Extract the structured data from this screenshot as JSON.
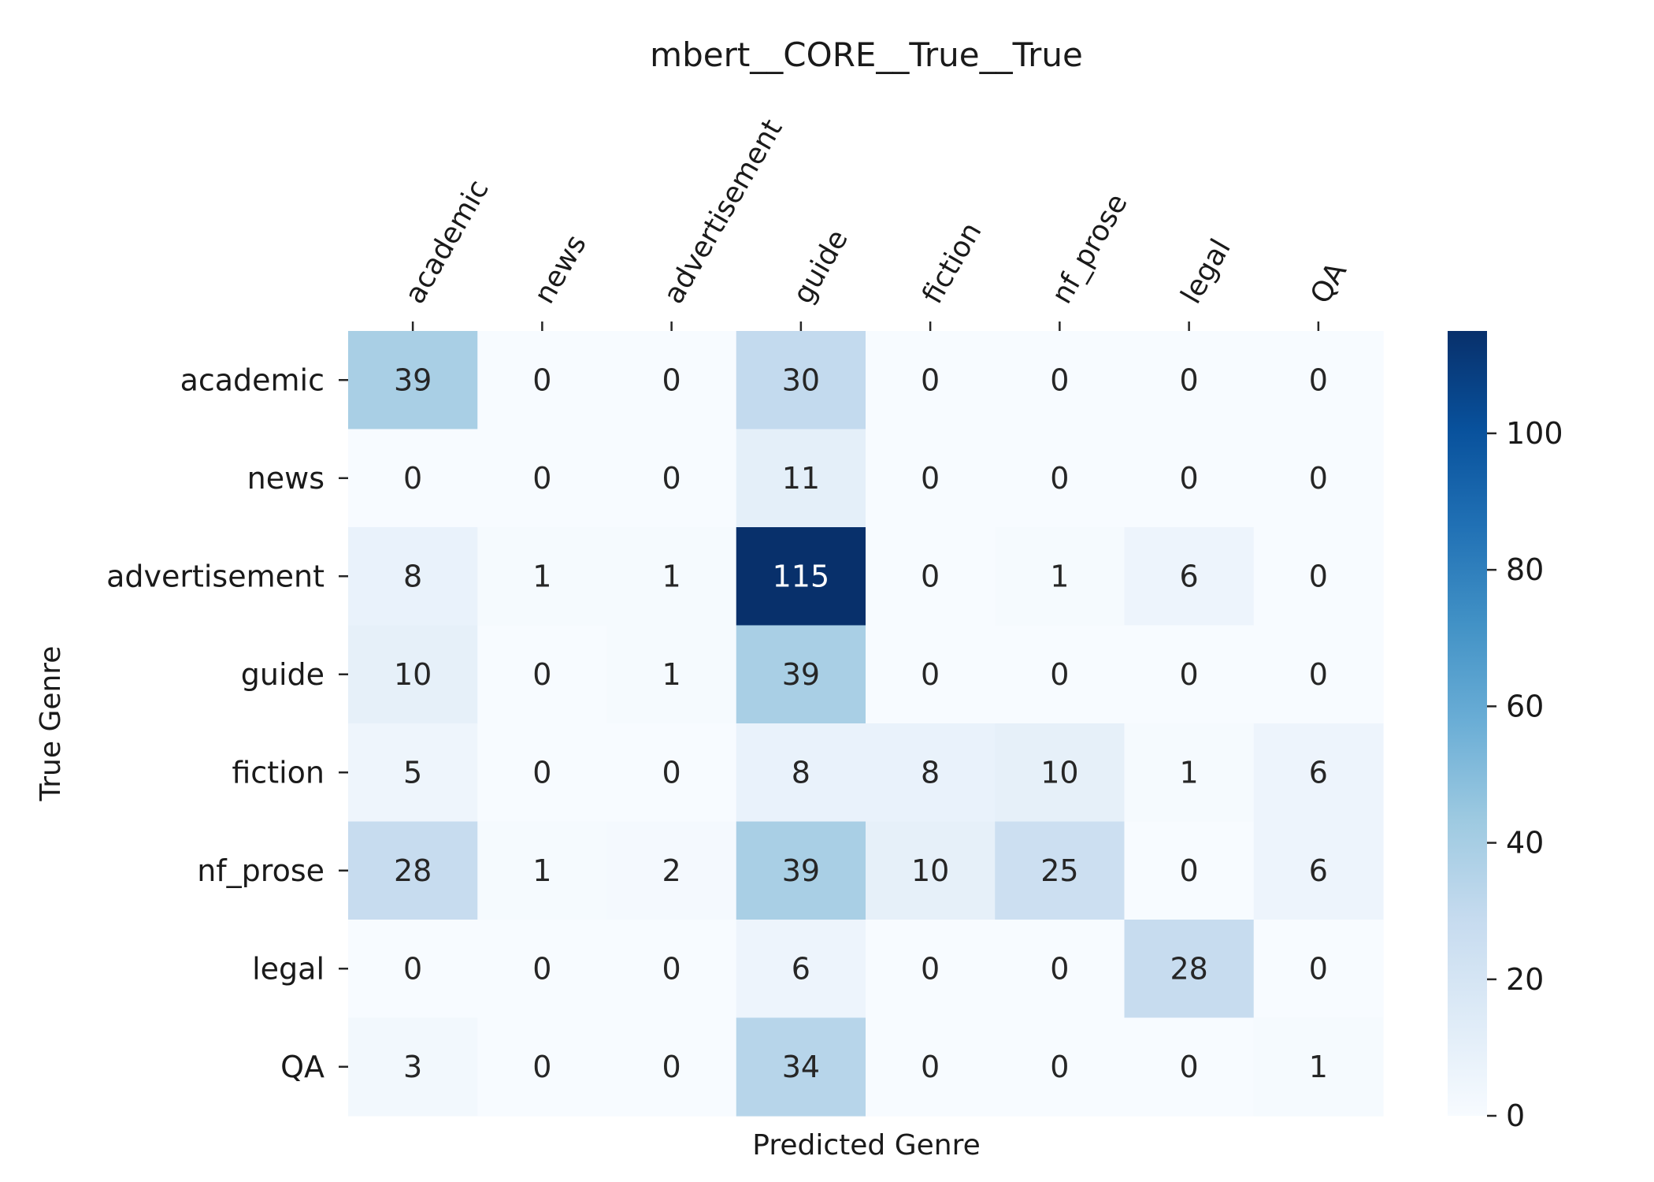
{
  "chart_data": {
    "type": "heatmap",
    "title": "mbert__CORE__True__True",
    "xlabel": "Predicted Genre",
    "ylabel": "True Genre",
    "x_categories": [
      "academic",
      "news",
      "advertisement",
      "guide",
      "fiction",
      "nf_prose",
      "legal",
      "QA"
    ],
    "y_categories": [
      "academic",
      "news",
      "advertisement",
      "guide",
      "fiction",
      "nf_prose",
      "legal",
      "QA"
    ],
    "values": [
      [
        39,
        0,
        0,
        30,
        0,
        0,
        0,
        0
      ],
      [
        0,
        0,
        0,
        11,
        0,
        0,
        0,
        0
      ],
      [
        8,
        1,
        1,
        115,
        0,
        1,
        6,
        0
      ],
      [
        10,
        0,
        1,
        39,
        0,
        0,
        0,
        0
      ],
      [
        5,
        0,
        0,
        8,
        8,
        10,
        1,
        6
      ],
      [
        28,
        1,
        2,
        39,
        10,
        25,
        0,
        6
      ],
      [
        0,
        0,
        0,
        6,
        0,
        0,
        28,
        0
      ],
      [
        3,
        0,
        0,
        34,
        0,
        0,
        0,
        1
      ]
    ],
    "colormap": "Blues",
    "color_range": [
      0,
      115
    ],
    "colorbar_ticks": [
      0,
      20,
      40,
      60,
      80,
      100
    ],
    "x_tick_position": "top",
    "grid": false
  }
}
